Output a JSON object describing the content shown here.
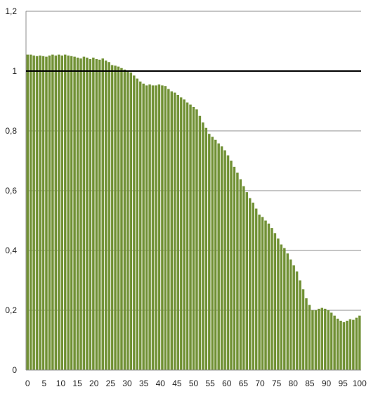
{
  "chart_data": {
    "type": "bar",
    "x_start": 0,
    "x_end": 100,
    "values": [
      1.055,
      1.055,
      1.052,
      1.05,
      1.052,
      1.05,
      1.048,
      1.052,
      1.055,
      1.052,
      1.055,
      1.052,
      1.055,
      1.052,
      1.05,
      1.048,
      1.045,
      1.042,
      1.048,
      1.045,
      1.04,
      1.045,
      1.04,
      1.038,
      1.042,
      1.035,
      1.03,
      1.02,
      1.018,
      1.015,
      1.01,
      1.005,
      1.0,
      0.995,
      0.985,
      0.975,
      0.965,
      0.958,
      0.952,
      0.955,
      0.952,
      0.952,
      0.955,
      0.952,
      0.95,
      0.94,
      0.932,
      0.928,
      0.92,
      0.912,
      0.905,
      0.895,
      0.888,
      0.88,
      0.872,
      0.85,
      0.828,
      0.81,
      0.79,
      0.78,
      0.77,
      0.758,
      0.748,
      0.735,
      0.718,
      0.7,
      0.68,
      0.66,
      0.638,
      0.615,
      0.595,
      0.575,
      0.56,
      0.54,
      0.52,
      0.512,
      0.5,
      0.49,
      0.475,
      0.458,
      0.44,
      0.42,
      0.408,
      0.39,
      0.37,
      0.35,
      0.33,
      0.3,
      0.27,
      0.24,
      0.218,
      0.2,
      0.2,
      0.205,
      0.208,
      0.205,
      0.2,
      0.192,
      0.182,
      0.172,
      0.165,
      0.16,
      0.165,
      0.17,
      0.168,
      0.175,
      0.182
    ],
    "ylim": [
      0,
      1.2
    ],
    "y_ticks": [
      "0",
      "0,2",
      "0,4",
      "0,6",
      "0,8",
      "1",
      "1,2"
    ],
    "x_ticks": [
      "0",
      "5",
      "10",
      "15",
      "20",
      "25",
      "30",
      "35",
      "40",
      "45",
      "50",
      "55",
      "60",
      "65",
      "70",
      "75",
      "80",
      "85",
      "90",
      "95",
      "100"
    ],
    "reference_line": 1,
    "grid": "horizontal",
    "colors": {
      "bar": "#6f8f34",
      "bar_highlight": "#8aa84a",
      "gridline": "#8c8c8c",
      "reference_line": "#000000",
      "axis": "#8c8c8c"
    }
  }
}
